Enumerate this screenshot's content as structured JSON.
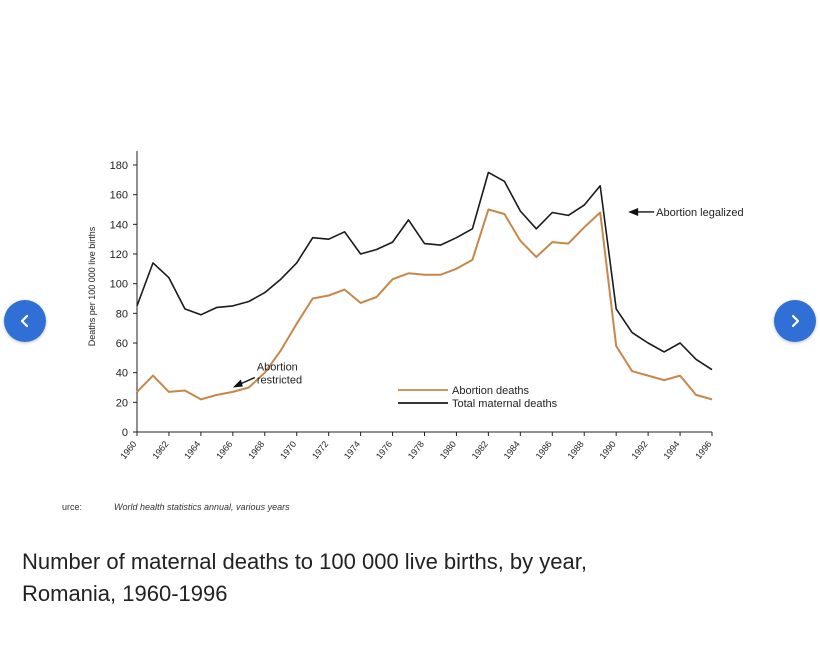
{
  "nav": {
    "prev_icon": "chevron-left-icon",
    "next_icon": "chevron-right-icon",
    "color": "#2f6fd6"
  },
  "source": {
    "label": "urce:",
    "text": "World health statistics annual, various years"
  },
  "caption": {
    "line1": "Number of maternal deaths to 100 000 live births, by year,",
    "line2": "Romania, 1960-1996"
  },
  "chart_data": {
    "type": "line",
    "title": "",
    "xlabel": "",
    "ylabel": "Deaths per 100 000 live births",
    "xlim": [
      1960,
      1996
    ],
    "ylim": [
      0,
      180
    ],
    "yticks": [
      0,
      20,
      40,
      60,
      80,
      100,
      120,
      140,
      160,
      180
    ],
    "xticks": [
      1960,
      1962,
      1964,
      1966,
      1968,
      1970,
      1972,
      1974,
      1976,
      1978,
      1980,
      1982,
      1984,
      1986,
      1988,
      1990,
      1992,
      1994,
      1996
    ],
    "x": [
      1960,
      1961,
      1962,
      1963,
      1964,
      1965,
      1966,
      1967,
      1968,
      1969,
      1970,
      1971,
      1972,
      1973,
      1974,
      1975,
      1976,
      1977,
      1978,
      1979,
      1980,
      1981,
      1982,
      1983,
      1984,
      1985,
      1986,
      1987,
      1988,
      1989,
      1990,
      1991,
      1992,
      1993,
      1994,
      1995,
      1996
    ],
    "series": [
      {
        "name": "Abortion deaths",
        "color": "#c8874a",
        "values": [
          27,
          38,
          27,
          28,
          22,
          25,
          27,
          30,
          40,
          55,
          73,
          90,
          92,
          96,
          87,
          91,
          103,
          107,
          106,
          106,
          110,
          116,
          150,
          147,
          129,
          118,
          128,
          127,
          138,
          148,
          58,
          41,
          38,
          35,
          38,
          25,
          22
        ]
      },
      {
        "name": "Total maternal deaths",
        "color": "#1a1a1a",
        "values": [
          85,
          114,
          104,
          83,
          79,
          84,
          85,
          88,
          94,
          103,
          114,
          131,
          130,
          135,
          120,
          123,
          128,
          143,
          127,
          126,
          131,
          137,
          175,
          169,
          149,
          137,
          148,
          146,
          153,
          166,
          83,
          67,
          60,
          54,
          60,
          49,
          42
        ]
      }
    ],
    "annotations": [
      {
        "text_lines": [
          "Abortion",
          "restricted"
        ],
        "x": 1966,
        "y": 30
      },
      {
        "text_lines": [
          "Abortion legalized"
        ],
        "x": 1990,
        "y": 149
      }
    ],
    "legend_position": "bottom-center",
    "grid": false
  }
}
